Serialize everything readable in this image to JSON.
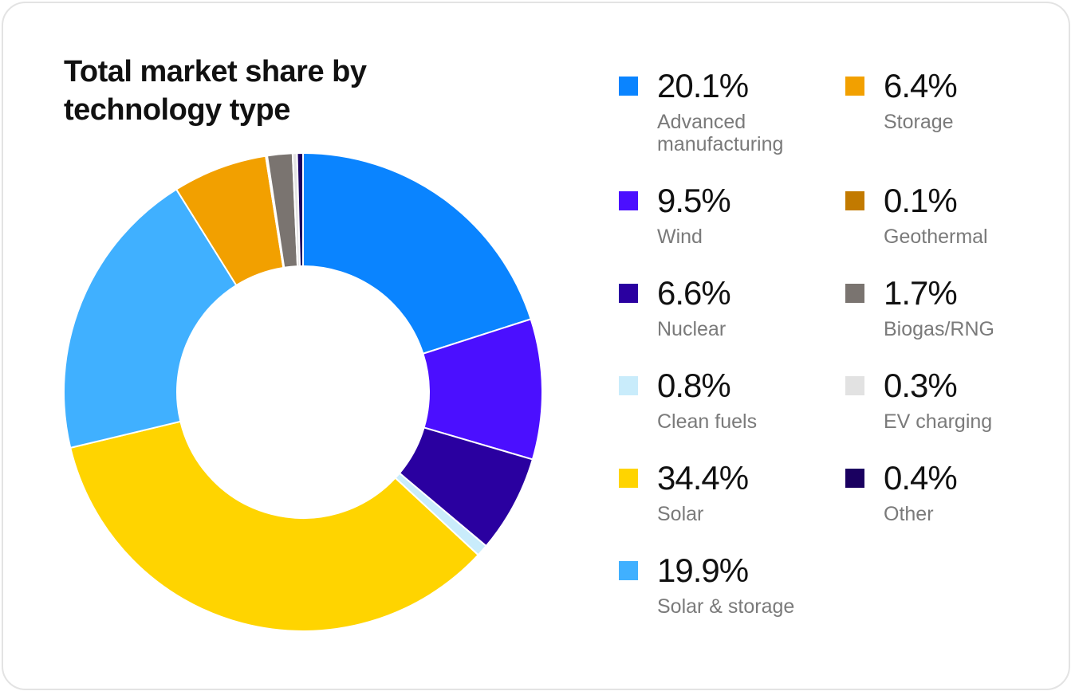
{
  "chart_data": {
    "type": "pie",
    "title": "Total market share by technology type",
    "title_lines": [
      "Total market share by",
      "technology type"
    ],
    "donut": true,
    "unit": "%",
    "slices": [
      {
        "label": "Advanced manufacturing",
        "value": 20.1,
        "value_label": "20.1%",
        "color": "#0A84FF"
      },
      {
        "label": "Wind",
        "value": 9.5,
        "value_label": "9.5%",
        "color": "#4B0FFF"
      },
      {
        "label": "Nuclear",
        "value": 6.6,
        "value_label": "6.6%",
        "color": "#2A00A0"
      },
      {
        "label": "Clean fuels",
        "value": 0.8,
        "value_label": "0.8%",
        "color": "#C9ECFB"
      },
      {
        "label": "Solar",
        "value": 34.4,
        "value_label": "34.4%",
        "color": "#FFD400"
      },
      {
        "label": "Solar & storage",
        "value": 19.9,
        "value_label": "19.9%",
        "color": "#40B0FF"
      },
      {
        "label": "Storage",
        "value": 6.4,
        "value_label": "6.4%",
        "color": "#F2A000"
      },
      {
        "label": "Geothermal",
        "value": 0.1,
        "value_label": "0.1%",
        "color": "#C27A00"
      },
      {
        "label": "Biogas/RNG",
        "value": 1.7,
        "value_label": "1.7%",
        "color": "#7A7470"
      },
      {
        "label": "EV charging",
        "value": 0.3,
        "value_label": "0.3%",
        "color": "#E2E2E2"
      },
      {
        "label": "Other",
        "value": 0.4,
        "value_label": "0.4%",
        "color": "#1A0060"
      }
    ],
    "legend_order": [
      "Advanced manufacturing",
      "Wind",
      "Nuclear",
      "Clean fuels",
      "Solar",
      "Solar & storage",
      "Storage",
      "Geothermal",
      "Biogas/RNG",
      "EV charging",
      "Other"
    ],
    "legend_placement": "right"
  }
}
